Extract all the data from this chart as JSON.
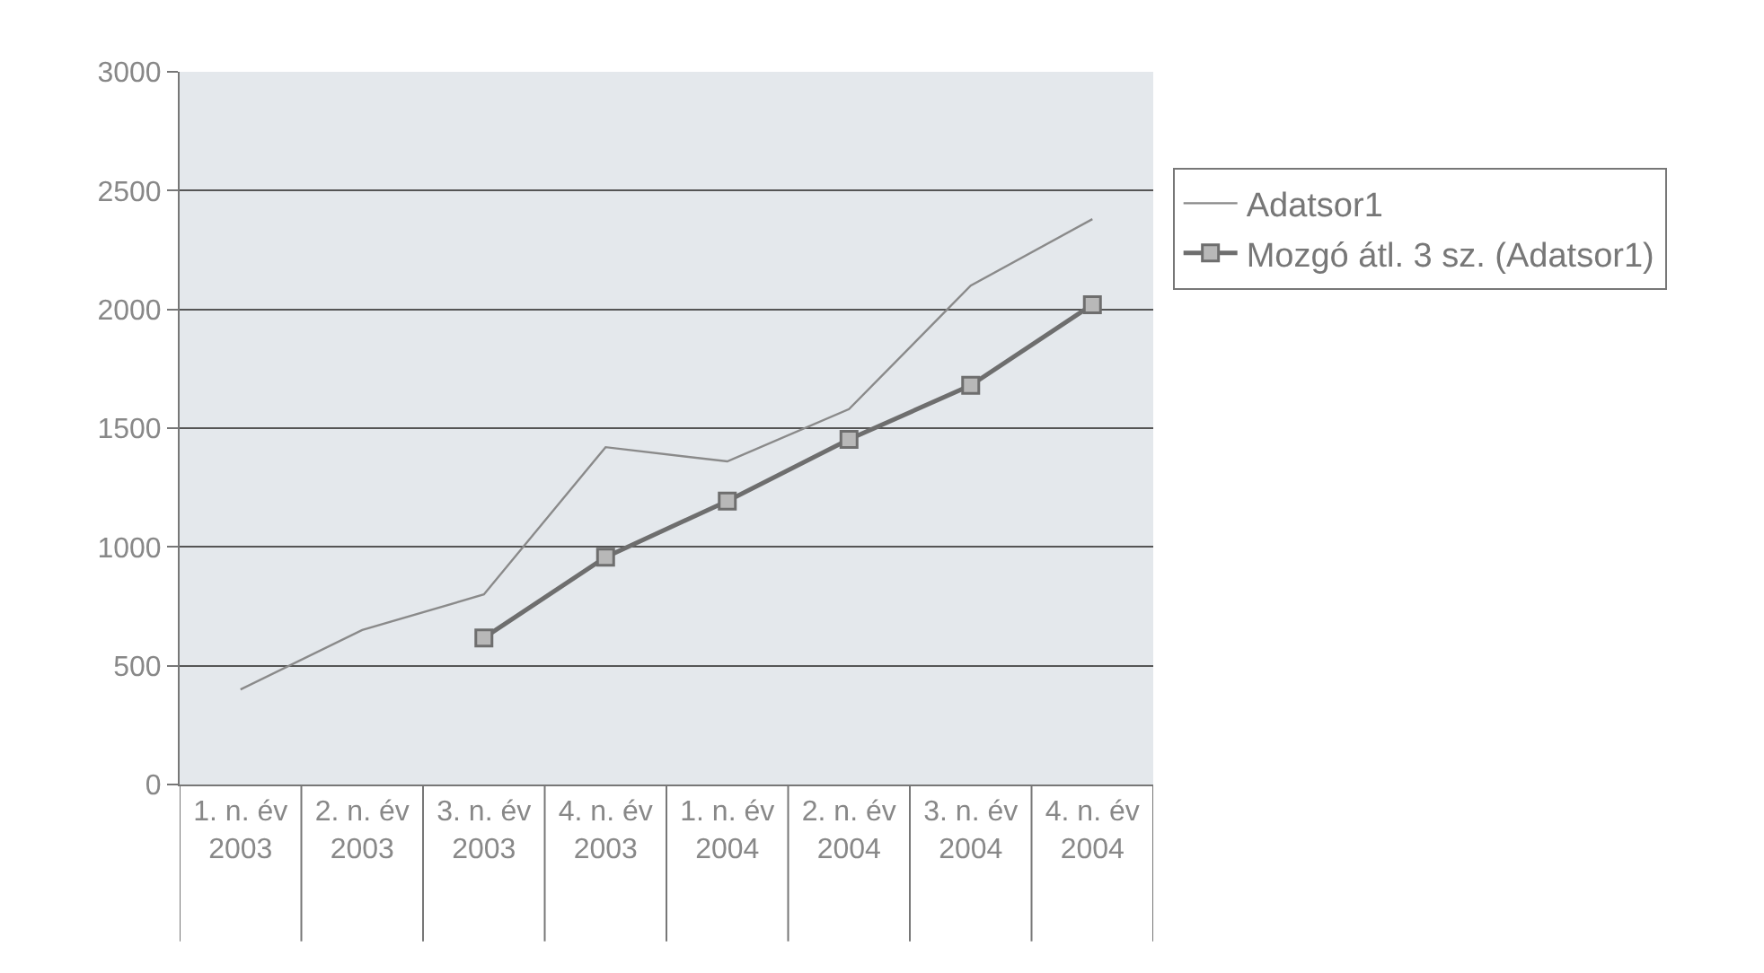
{
  "chart_data": {
    "type": "line",
    "categories": [
      "1. n. év\n2003",
      "2. n. év\n2003",
      "3. n. év\n2003",
      "4. n. év\n2003",
      "1. n. év\n2004",
      "2. n. év\n2004",
      "3. n. év\n2004",
      "4. n. év\n2004"
    ],
    "series": [
      {
        "name": "Adatsor1",
        "color": "#8a8a8a",
        "marker": "none",
        "values": [
          400,
          650,
          800,
          1420,
          1360,
          1580,
          2100,
          2380
        ]
      },
      {
        "name": "Mozgó átl. 3 sz. (Adatsor1)",
        "color": "#6e6e6e",
        "marker": "square",
        "values": [
          null,
          null,
          617,
          957,
          1193,
          1453,
          1680,
          2020
        ]
      }
    ],
    "ylim": [
      0,
      3000
    ],
    "yticks": [
      0,
      500,
      1000,
      1500,
      2000,
      2500,
      3000
    ],
    "grid": "y",
    "legend": "right"
  }
}
